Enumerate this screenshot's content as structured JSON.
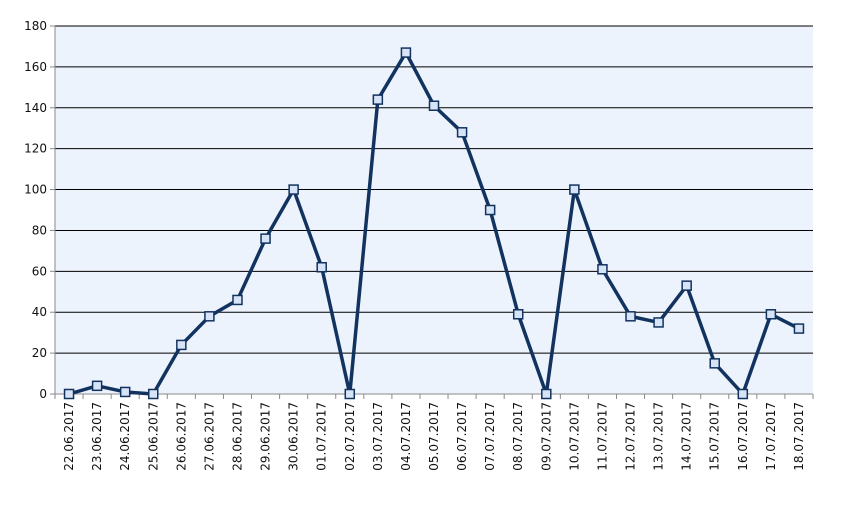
{
  "chart_data": {
    "type": "line",
    "categories": [
      "22.06.2017",
      "23.06.2017",
      "24.06.2017",
      "25.06.2017",
      "26.06.2017",
      "27.06.2017",
      "28.06.2017",
      "29.06.2017",
      "30.06.2017",
      "01.07.2017",
      "02.07.2017",
      "03.07.2017",
      "04.07.2017",
      "05.07.2017",
      "06.07.2017",
      "07.07.2017",
      "08.07.2017",
      "09.07.2017",
      "10.07.2017",
      "11.07.2017",
      "12.07.2017",
      "13.07.2017",
      "14.07.2017",
      "15.07.2017",
      "16.07.2017",
      "17.07.2017",
      "18.07.2017"
    ],
    "series": [
      {
        "values": [
          0,
          4,
          1,
          0,
          24,
          38,
          46,
          76,
          100,
          62,
          0,
          144,
          167,
          141,
          128,
          90,
          39,
          0,
          100,
          61,
          38,
          35,
          53,
          15,
          0,
          39,
          32
        ]
      }
    ],
    "yticks": [
      "0",
      "20",
      "40",
      "60",
      "80",
      "100",
      "120",
      "140",
      "160",
      "180"
    ],
    "ylim": [
      0,
      180
    ],
    "grid": true,
    "legend": "none",
    "colors": {
      "line": "#12335f",
      "marker_fill": "#d7e4f7",
      "plot_bg": "#edf3fc"
    }
  }
}
